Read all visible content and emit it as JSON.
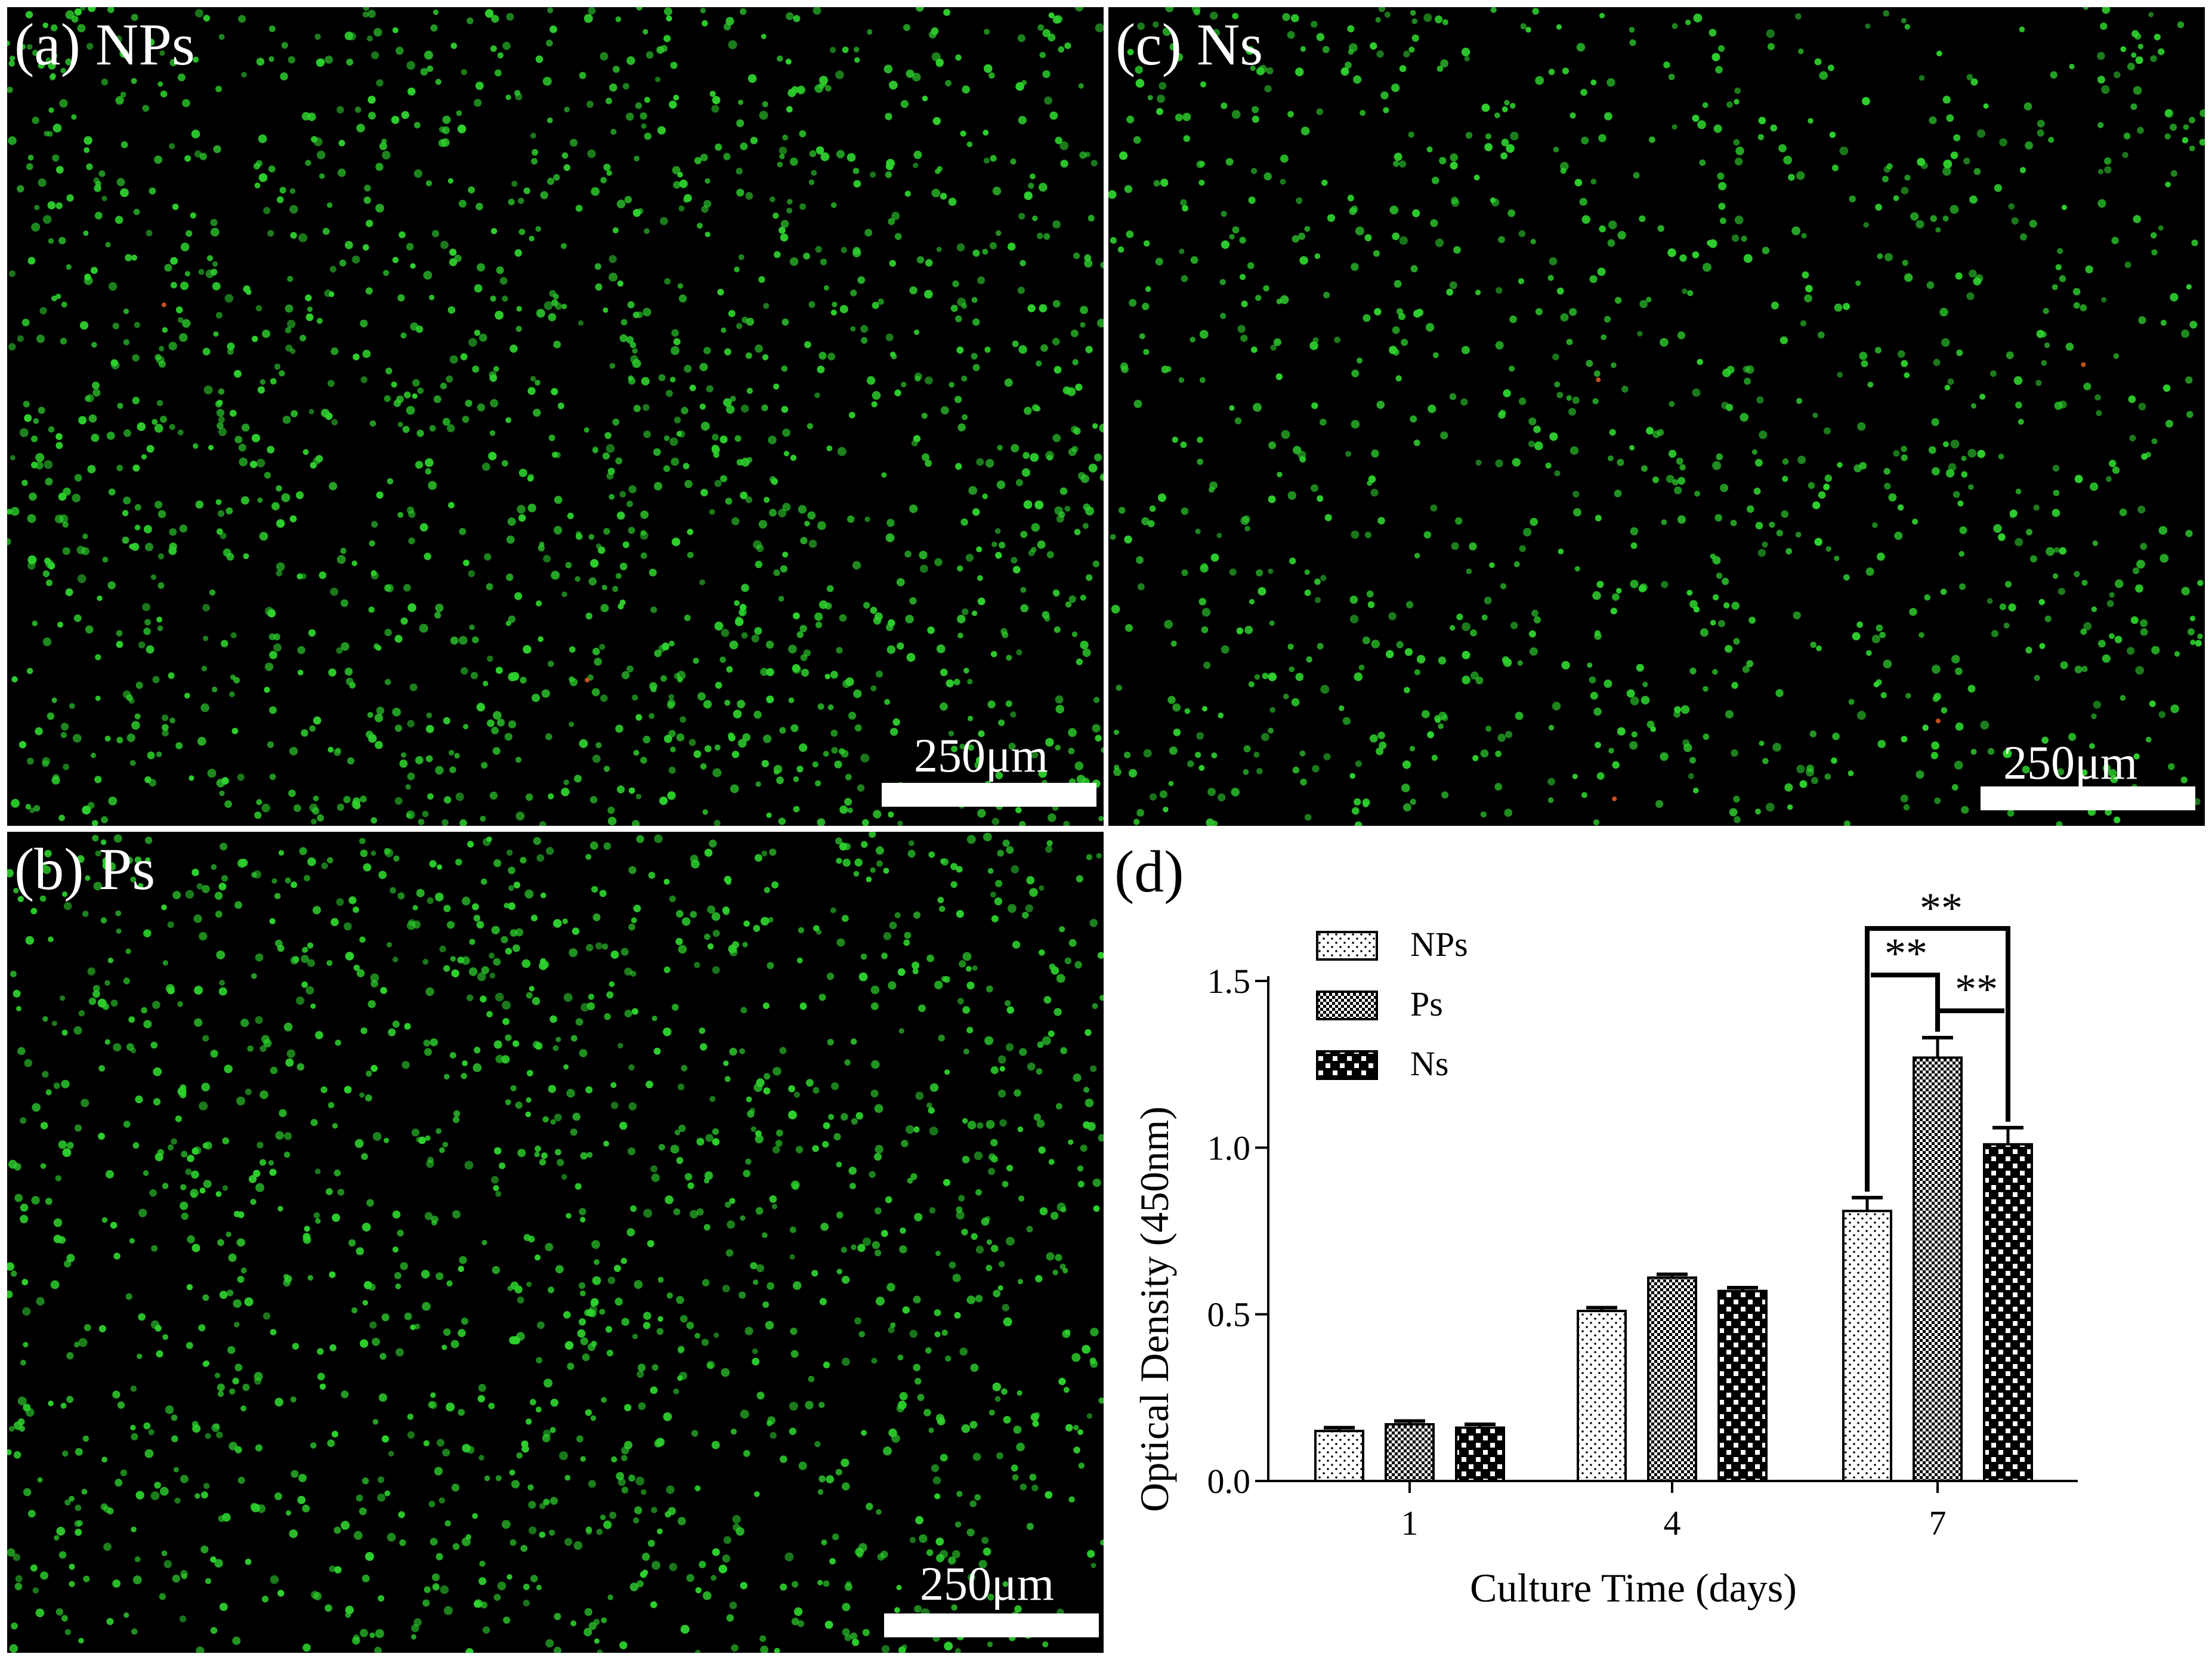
{
  "panels": {
    "a": {
      "label": "(a) NPs",
      "scale": "250μm"
    },
    "b": {
      "label": "(b) Ps",
      "scale": "250μm"
    },
    "c": {
      "label": "(c) Ns",
      "scale": "250μm"
    },
    "d": {
      "label": "(d)"
    }
  },
  "colors": {
    "background": "#000000",
    "live_cells": "#2ed12e",
    "dead_cells": "#c8501e",
    "scalebar": "#ffffff",
    "bars": "#000000"
  },
  "chart_data": {
    "type": "bar",
    "title": "",
    "xlabel": "Culture Time (days)",
    "ylabel": "Optical Density (450nm)",
    "categories": [
      "1",
      "4",
      "7"
    ],
    "ylim": [
      0,
      1.5
    ],
    "yticks": [
      "0.0",
      "0.5",
      "1.0",
      "1.5"
    ],
    "legend_position": "top-left",
    "series": [
      {
        "name": "NPs",
        "pattern": "dots",
        "values": [
          0.15,
          0.51,
          0.81
        ],
        "errors": [
          0.01,
          0.01,
          0.04
        ]
      },
      {
        "name": "Ps",
        "pattern": "fine-checker",
        "values": [
          0.17,
          0.61,
          1.27
        ],
        "errors": [
          0.01,
          0.01,
          0.06
        ]
      },
      {
        "name": "Ns",
        "pattern": "checker",
        "values": [
          0.16,
          0.57,
          1.01
        ],
        "errors": [
          0.01,
          0.01,
          0.05
        ]
      }
    ],
    "significance": [
      {
        "category": "7",
        "pair": [
          "NPs",
          "Ns"
        ],
        "label": "**"
      },
      {
        "category": "7",
        "pair": [
          "NPs",
          "Ps"
        ],
        "label": "**"
      },
      {
        "category": "7",
        "pair": [
          "Ps",
          "Ns"
        ],
        "label": "**"
      }
    ]
  }
}
